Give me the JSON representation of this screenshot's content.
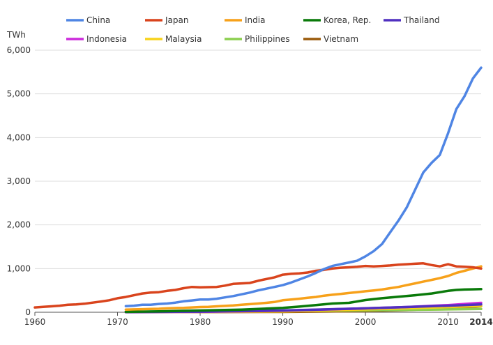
{
  "chart_data": {
    "type": "line",
    "ylabel": "TWh",
    "xlim": [
      1960,
      2014
    ],
    "ylim": [
      0,
      6000
    ],
    "grid": true,
    "legend_position": "top",
    "x_ticks": [
      "1960",
      "1970",
      "1980",
      "1990",
      "2000",
      "2010",
      "2014"
    ],
    "y_ticks": [
      "0",
      "1,000",
      "2,000",
      "3,000",
      "4,000",
      "5,000",
      "6,000"
    ],
    "series": [
      {
        "name": "China",
        "color": "#4f85e4",
        "x": [
          1971,
          1972,
          1973,
          1974,
          1975,
          1976,
          1977,
          1978,
          1979,
          1980,
          1981,
          1982,
          1983,
          1984,
          1985,
          1986,
          1987,
          1988,
          1989,
          1990,
          1991,
          1992,
          1993,
          1994,
          1995,
          1996,
          1997,
          1998,
          1999,
          2000,
          2001,
          2002,
          2003,
          2004,
          2005,
          2006,
          2007,
          2008,
          2009,
          2010,
          2011,
          2012,
          2013,
          2014
        ],
        "values": [
          140,
          150,
          170,
          170,
          190,
          200,
          220,
          250,
          270,
          290,
          290,
          310,
          340,
          370,
          410,
          450,
          500,
          540,
          580,
          620,
          680,
          750,
          820,
          900,
          990,
          1060,
          1100,
          1140,
          1180,
          1280,
          1400,
          1560,
          1830,
          2100,
          2400,
          2800,
          3200,
          3420,
          3600,
          4100,
          4650,
          4950,
          5350,
          5600
        ]
      },
      {
        "name": "Japan",
        "color": "#d9441d",
        "x": [
          1960,
          1961,
          1962,
          1963,
          1964,
          1965,
          1966,
          1967,
          1968,
          1969,
          1970,
          1971,
          1972,
          1973,
          1974,
          1975,
          1976,
          1977,
          1978,
          1979,
          1980,
          1981,
          1982,
          1983,
          1984,
          1985,
          1986,
          1987,
          1988,
          1989,
          1990,
          1991,
          1992,
          1993,
          1994,
          1995,
          1996,
          1997,
          1998,
          1999,
          2000,
          2001,
          2002,
          2003,
          2004,
          2005,
          2006,
          2007,
          2008,
          2009,
          2010,
          2011,
          2012,
          2013,
          2014
        ],
        "values": [
          110,
          125,
          135,
          150,
          170,
          180,
          195,
          220,
          245,
          275,
          320,
          350,
          390,
          430,
          450,
          460,
          490,
          510,
          550,
          580,
          570,
          575,
          580,
          610,
          650,
          660,
          670,
          720,
          760,
          800,
          860,
          880,
          890,
          910,
          950,
          970,
          1000,
          1020,
          1030,
          1040,
          1060,
          1050,
          1060,
          1070,
          1090,
          1100,
          1110,
          1120,
          1080,
          1050,
          1100,
          1050,
          1040,
          1030,
          1000
        ]
      },
      {
        "name": "India",
        "color": "#f7a11a",
        "x": [
          1971,
          1972,
          1973,
          1974,
          1975,
          1976,
          1977,
          1978,
          1979,
          1980,
          1981,
          1982,
          1983,
          1984,
          1985,
          1986,
          1987,
          1988,
          1989,
          1990,
          1991,
          1992,
          1993,
          1994,
          1995,
          1996,
          1997,
          1998,
          1999,
          2000,
          2001,
          2002,
          2003,
          2004,
          2005,
          2006,
          2007,
          2008,
          2009,
          2010,
          2011,
          2012,
          2013,
          2014
        ],
        "values": [
          60,
          65,
          70,
          75,
          80,
          90,
          95,
          100,
          110,
          120,
          125,
          135,
          145,
          155,
          170,
          185,
          200,
          215,
          235,
          275,
          290,
          310,
          330,
          350,
          380,
          400,
          420,
          440,
          460,
          480,
          500,
          520,
          550,
          580,
          620,
          660,
          700,
          740,
          780,
          830,
          900,
          950,
          1000,
          1050
        ]
      },
      {
        "name": "Korea, Rep.",
        "color": "#0a7a0a",
        "x": [
          1971,
          1975,
          1980,
          1985,
          1990,
          1992,
          1994,
          1996,
          1998,
          2000,
          2002,
          2004,
          2006,
          2008,
          2010,
          2011,
          2012,
          2013,
          2014
        ],
        "values": [
          10,
          20,
          40,
          60,
          100,
          130,
          165,
          200,
          215,
          280,
          320,
          355,
          390,
          430,
          490,
          510,
          520,
          525,
          530
        ]
      },
      {
        "name": "Thailand",
        "color": "#5030c0",
        "x": [
          1971,
          1980,
          1990,
          2000,
          2005,
          2010,
          2014
        ],
        "values": [
          5,
          15,
          40,
          90,
          120,
          150,
          180
        ]
      },
      {
        "name": "Indonesia",
        "color": "#cc2adb",
        "x": [
          1971,
          1980,
          1990,
          2000,
          2005,
          2010,
          2014
        ],
        "values": [
          3,
          10,
          35,
          90,
          120,
          165,
          215
        ]
      },
      {
        "name": "Malaysia",
        "color": "#f7d21a",
        "x": [
          1971,
          1980,
          1990,
          2000,
          2005,
          2010,
          2014
        ],
        "values": [
          3,
          8,
          20,
          65,
          90,
          120,
          145
        ]
      },
      {
        "name": "Philippines",
        "color": "#8bcf4f",
        "x": [
          1971,
          1980,
          1990,
          2000,
          2005,
          2010,
          2014
        ],
        "values": [
          8,
          15,
          25,
          45,
          55,
          65,
          75
        ]
      },
      {
        "name": "Vietnam",
        "color": "#9a5a0a",
        "x": [
          1971,
          1980,
          1990,
          2000,
          2005,
          2010,
          2014
        ],
        "values": [
          2,
          4,
          8,
          25,
          50,
          90,
          140
        ]
      }
    ]
  }
}
